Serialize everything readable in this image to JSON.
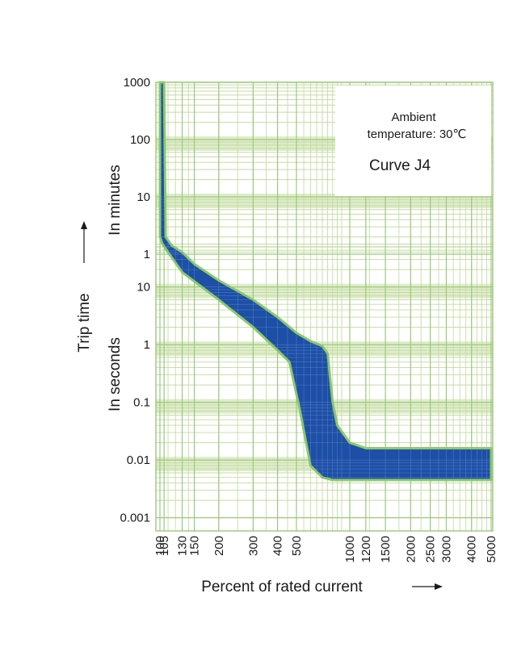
{
  "chart_data": {
    "type": "area",
    "xscale": "log",
    "yscale": "log",
    "xlabel": "Percent of rated current",
    "ylabel_main": "Trip time",
    "ylabel_minutes": "In minutes",
    "ylabel_seconds": "In seconds",
    "xlim": [
      100,
      5000
    ],
    "x_ticks": [
      "100",
      "105",
      "130",
      "150",
      "200",
      "300",
      "400",
      "500",
      "1000",
      "1200",
      "1500",
      "2000",
      "2500",
      "3000",
      "4000",
      "5000"
    ],
    "y_ticks_minutes": [
      "1000",
      "100",
      "10",
      "1"
    ],
    "y_ticks_seconds": [
      "10",
      "1",
      "0.1",
      "0.01",
      "0.001"
    ],
    "annotation": {
      "line1": "Ambient",
      "line2": "temperature: 30℃",
      "curve": "Curve J4"
    },
    "series": [
      {
        "name": "Curve J4",
        "upper_bound": [
          [
            105,
            60000
          ],
          [
            107,
            120
          ],
          [
            115,
            52
          ],
          [
            130,
            40
          ],
          [
            150,
            25
          ],
          [
            200,
            13
          ],
          [
            300,
            6
          ],
          [
            400,
            3
          ],
          [
            500,
            1.6
          ],
          [
            600,
            1.15
          ],
          [
            700,
            0.95
          ],
          [
            750,
            0.7
          ],
          [
            800,
            0.1
          ],
          [
            850,
            0.04
          ],
          [
            1000,
            0.02
          ],
          [
            1200,
            0.016
          ],
          [
            1500,
            0.016
          ],
          [
            2000,
            0.016
          ],
          [
            5000,
            0.016
          ]
        ],
        "lower_bound": [
          [
            5000,
            0.0045
          ],
          [
            2000,
            0.0045
          ],
          [
            1000,
            0.0045
          ],
          [
            800,
            0.0045
          ],
          [
            700,
            0.005
          ],
          [
            600,
            0.008
          ],
          [
            520,
            0.08
          ],
          [
            460,
            0.5
          ],
          [
            400,
            0.8
          ],
          [
            300,
            2
          ],
          [
            200,
            6
          ],
          [
            130,
            18
          ],
          [
            110,
            40
          ],
          [
            103,
            90
          ],
          [
            100,
            120
          ],
          [
            100,
            60000
          ]
        ]
      }
    ],
    "colors": {
      "fill": "#1e4fa6",
      "outline": "#8cc96a",
      "grid_fine": "#c3dca2",
      "grid_major": "#9cc87d",
      "band": "#dfeccb",
      "axis_text": "#1a1a1a"
    },
    "grid": true
  }
}
